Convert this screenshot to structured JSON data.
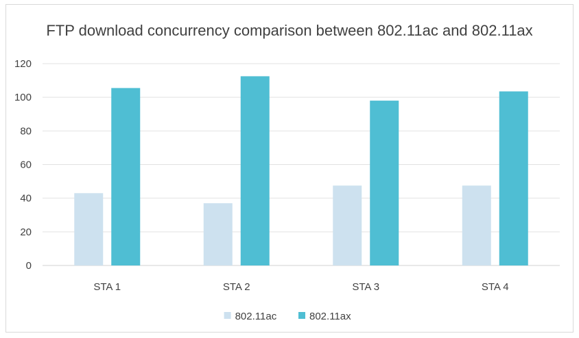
{
  "chart_data": {
    "type": "bar",
    "title": "FTP download concurrency comparison between 802.11ac and 802.11ax",
    "xlabel": "",
    "ylabel": "",
    "categories": [
      "STA 1",
      "STA 2",
      "STA 3",
      "STA 4"
    ],
    "series": [
      {
        "name": "802.11ac",
        "values": [
          43,
          37,
          47.5,
          47.5
        ],
        "color": "#cde1ef"
      },
      {
        "name": "802.11ax",
        "values": [
          105.5,
          112.5,
          98,
          103.5
        ],
        "color": "#4fbed3"
      }
    ],
    "ylim": [
      0,
      120
    ],
    "yticks": [
      0,
      20,
      40,
      60,
      80,
      100,
      120
    ],
    "grid": true,
    "legend_position": "bottom"
  }
}
